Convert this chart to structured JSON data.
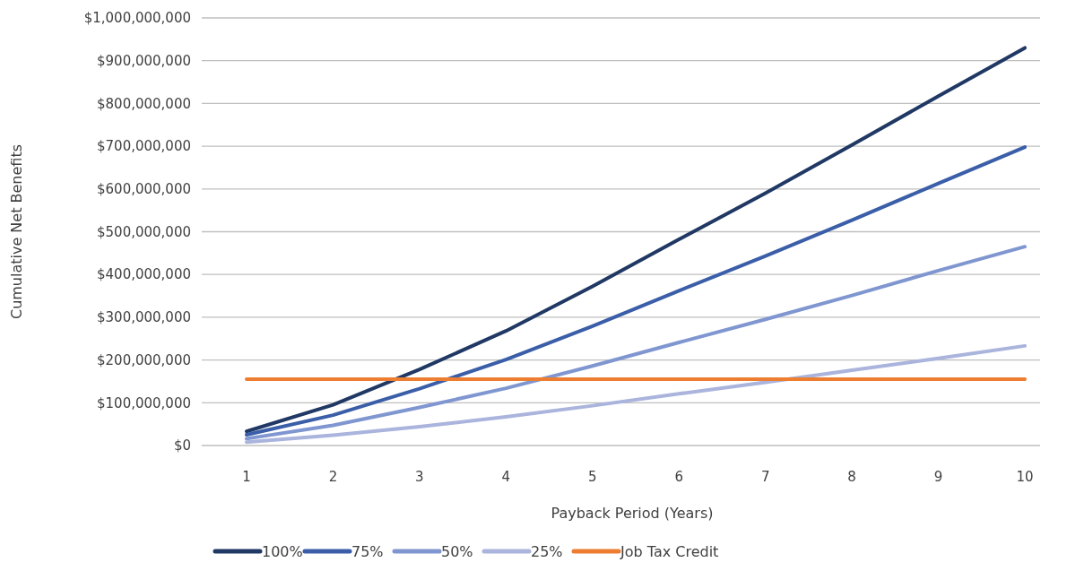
{
  "chart_data": {
    "type": "line",
    "xlabel": "Payback Period (Years)",
    "ylabel": "Cumulative  Net Benefits",
    "categories": [
      "1",
      "2",
      "3",
      "4",
      "5",
      "6",
      "7",
      "8",
      "9",
      "10"
    ],
    "series": [
      {
        "name": "100%",
        "color": "#203864",
        "values": [
          33000000,
          95000000,
          178000000,
          268000000,
          372000000,
          482000000,
          590000000,
          703000000,
          817000000,
          930000000
        ]
      },
      {
        "name": "75%",
        "color": "#3a5ea8",
        "values": [
          25000000,
          71000000,
          133000000,
          201000000,
          279000000,
          362000000,
          443000000,
          527000000,
          613000000,
          698000000
        ]
      },
      {
        "name": "50%",
        "color": "#7f96d0",
        "values": [
          16000000,
          47000000,
          89000000,
          134000000,
          186000000,
          241000000,
          295000000,
          351000000,
          409000000,
          465000000
        ]
      },
      {
        "name": "25%",
        "color": "#aab4dc",
        "values": [
          8000000,
          24000000,
          44000000,
          67000000,
          93000000,
          121000000,
          148000000,
          176000000,
          204000000,
          233000000
        ]
      },
      {
        "name": "Job Tax Credit",
        "color": "#ed7d31",
        "values": [
          155000000,
          155000000,
          155000000,
          155000000,
          155000000,
          155000000,
          155000000,
          155000000,
          155000000,
          155000000
        ]
      }
    ],
    "ylim": [
      0,
      1000000000
    ],
    "yticks": [
      {
        "value": 0,
        "label": "$0"
      },
      {
        "value": 100000000,
        "label": "$100,000,000"
      },
      {
        "value": 200000000,
        "label": "$200,000,000"
      },
      {
        "value": 300000000,
        "label": "$300,000,000"
      },
      {
        "value": 400000000,
        "label": "$400,000,000"
      },
      {
        "value": 500000000,
        "label": "$500,000,000"
      },
      {
        "value": 600000000,
        "label": "$600,000,000"
      },
      {
        "value": 700000000,
        "label": "$700,000,000"
      },
      {
        "value": 800000000,
        "label": "$800,000,000"
      },
      {
        "value": 900000000,
        "label": "$900,000,000"
      },
      {
        "value": 1000000000,
        "label": "$1,000,000,000"
      }
    ],
    "grid": "y",
    "legend": "bottom",
    "marker": "none",
    "line_style": "solid"
  }
}
